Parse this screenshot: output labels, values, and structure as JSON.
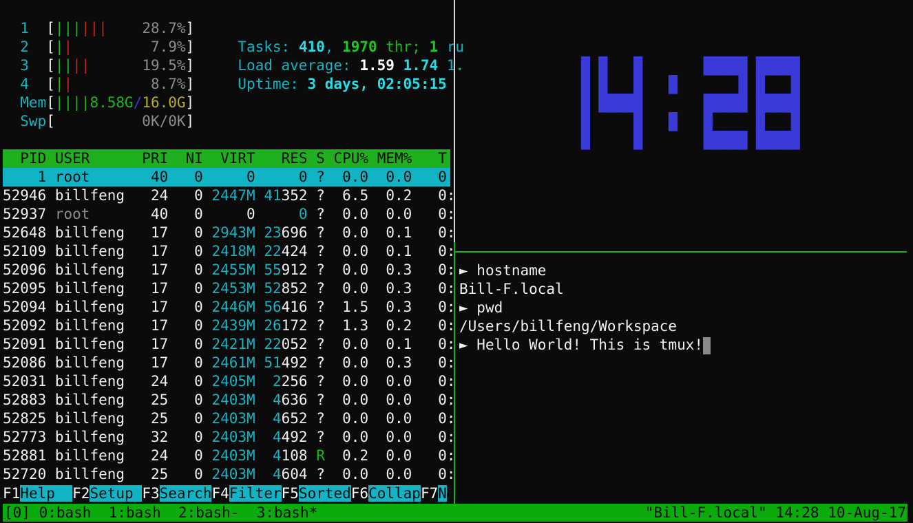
{
  "htop": {
    "cpus": [
      {
        "label": "1",
        "green": 3,
        "red": 3,
        "value": "28.7%"
      },
      {
        "label": "2",
        "green": 1,
        "red": 1,
        "value": "7.9%"
      },
      {
        "label": "3",
        "green": 2,
        "red": 2,
        "value": "19.5%"
      },
      {
        "label": "4",
        "green": 1,
        "red": 1,
        "value": "8.7%"
      }
    ],
    "mem": {
      "label": "Mem",
      "green": 4,
      "used": "8.58G",
      "total": "16.0G"
    },
    "swp": {
      "label": "Swp",
      "value": "0K/0K"
    },
    "tasks": {
      "label": "Tasks: ",
      "count": "410",
      "sep1": ", ",
      "threads": "1970",
      "thr_label": " thr; ",
      "running": "1",
      "run_label": " ru"
    },
    "load": {
      "label": "Load average: ",
      "l1": "1.59",
      "l5": "1.74",
      "l15": "1."
    },
    "uptime": {
      "label": "Uptime: ",
      "value": "3 days, 02:05:15"
    },
    "columns": [
      "PID",
      "USER",
      "PRI",
      "NI",
      "VIRT",
      "RES",
      "S",
      "CPU%",
      "MEM%",
      "T"
    ],
    "processes": [
      {
        "pid": "1",
        "user": "root",
        "pri": "40",
        "ni": "0",
        "virt": "0",
        "res": "0",
        "s": "?",
        "cpu": "0.0",
        "mem": "0.0",
        "time": "0:",
        "selected": true
      },
      {
        "pid": "52946",
        "user": "billfeng",
        "pri": "24",
        "ni": "0",
        "virt": "2447M",
        "res": "41352",
        "s": "?",
        "cpu": "6.5",
        "mem": "0.2",
        "time": "0:"
      },
      {
        "pid": "52937",
        "user": "root",
        "pri": "40",
        "ni": "0",
        "virt": "0",
        "res": "0",
        "s": "?",
        "cpu": "0.0",
        "mem": "0.0",
        "time": "0:"
      },
      {
        "pid": "52648",
        "user": "billfeng",
        "pri": "17",
        "ni": "0",
        "virt": "2943M",
        "res": "23696",
        "s": "?",
        "cpu": "0.0",
        "mem": "0.1",
        "time": "0:"
      },
      {
        "pid": "52109",
        "user": "billfeng",
        "pri": "17",
        "ni": "0",
        "virt": "2418M",
        "res": "22424",
        "s": "?",
        "cpu": "0.0",
        "mem": "0.1",
        "time": "0:"
      },
      {
        "pid": "52096",
        "user": "billfeng",
        "pri": "17",
        "ni": "0",
        "virt": "2455M",
        "res": "55912",
        "s": "?",
        "cpu": "0.0",
        "mem": "0.3",
        "time": "0:"
      },
      {
        "pid": "52095",
        "user": "billfeng",
        "pri": "17",
        "ni": "0",
        "virt": "2453M",
        "res": "52852",
        "s": "?",
        "cpu": "0.0",
        "mem": "0.3",
        "time": "0:"
      },
      {
        "pid": "52094",
        "user": "billfeng",
        "pri": "17",
        "ni": "0",
        "virt": "2446M",
        "res": "56416",
        "s": "?",
        "cpu": "1.5",
        "mem": "0.3",
        "time": "0:"
      },
      {
        "pid": "52092",
        "user": "billfeng",
        "pri": "17",
        "ni": "0",
        "virt": "2439M",
        "res": "26172",
        "s": "?",
        "cpu": "1.3",
        "mem": "0.2",
        "time": "0:"
      },
      {
        "pid": "52091",
        "user": "billfeng",
        "pri": "17",
        "ni": "0",
        "virt": "2421M",
        "res": "22052",
        "s": "?",
        "cpu": "0.0",
        "mem": "0.1",
        "time": "0:"
      },
      {
        "pid": "52086",
        "user": "billfeng",
        "pri": "17",
        "ni": "0",
        "virt": "2461M",
        "res": "51492",
        "s": "?",
        "cpu": "0.0",
        "mem": "0.3",
        "time": "0:"
      },
      {
        "pid": "52031",
        "user": "billfeng",
        "pri": "24",
        "ni": "0",
        "virt": "2405M",
        "res": "2256",
        "s": "?",
        "cpu": "0.0",
        "mem": "0.0",
        "time": "0:"
      },
      {
        "pid": "52883",
        "user": "billfeng",
        "pri": "25",
        "ni": "0",
        "virt": "2403M",
        "res": "4636",
        "s": "?",
        "cpu": "0.0",
        "mem": "0.0",
        "time": "0:"
      },
      {
        "pid": "52825",
        "user": "billfeng",
        "pri": "25",
        "ni": "0",
        "virt": "2403M",
        "res": "4652",
        "s": "?",
        "cpu": "0.0",
        "mem": "0.0",
        "time": "0:"
      },
      {
        "pid": "52773",
        "user": "billfeng",
        "pri": "32",
        "ni": "0",
        "virt": "2403M",
        "res": "4492",
        "s": "?",
        "cpu": "0.0",
        "mem": "0.0",
        "time": "0:"
      },
      {
        "pid": "52881",
        "user": "billfeng",
        "pri": "24",
        "ni": "0",
        "virt": "2403M",
        "res": "4108",
        "s": "R",
        "cpu": "0.2",
        "mem": "0.0",
        "time": "0:"
      },
      {
        "pid": "52720",
        "user": "billfeng",
        "pri": "25",
        "ni": "0",
        "virt": "2403M",
        "res": "4604",
        "s": "?",
        "cpu": "0.0",
        "mem": "0.0",
        "time": "0:"
      }
    ],
    "function_keys": [
      {
        "key": "F1",
        "label": "Help  "
      },
      {
        "key": "F2",
        "label": "Setup "
      },
      {
        "key": "F3",
        "label": "Search"
      },
      {
        "key": "F4",
        "label": "Filter"
      },
      {
        "key": "F5",
        "label": "Sorted"
      },
      {
        "key": "F6",
        "label": "Collap"
      },
      {
        "key": "F7",
        "label": "N"
      }
    ]
  },
  "clock": {
    "time": "14:28",
    "color": "#3a3ad8"
  },
  "shell": {
    "prompt_icon": "►",
    "lines": [
      {
        "prompt": true,
        "text": "hostname"
      },
      {
        "prompt": false,
        "text": "Bill-F.local"
      },
      {
        "prompt": true,
        "text": "pwd"
      },
      {
        "prompt": false,
        "text": "/Users/billfeng/Workspace"
      },
      {
        "prompt": true,
        "text": "Hello World! This is tmux!",
        "cursor": true
      }
    ]
  },
  "status_bar": {
    "session": "[0]",
    "windows": [
      "0:bash",
      "1:bash",
      "2:bash-",
      "3:bash*"
    ],
    "right": "\"Bill-F.local\" 14:28 10-Aug-17",
    "color": "#0aab0a"
  }
}
